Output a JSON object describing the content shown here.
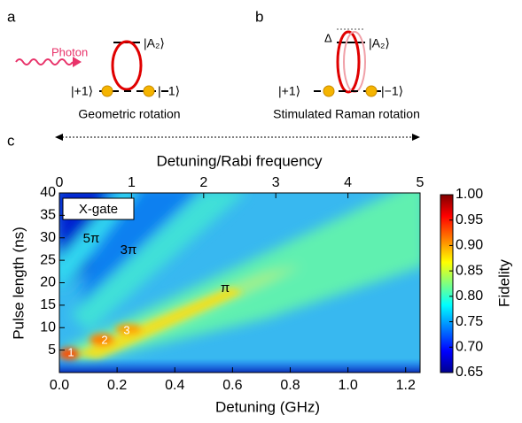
{
  "panels": {
    "a": {
      "label": "a",
      "photon": "Photon",
      "state_excited": "|A₂⟩",
      "state_plus": "|+1⟩",
      "state_minus": "|−1⟩",
      "caption": "Geometric rotation"
    },
    "b": {
      "label": "b",
      "delta": "Δ",
      "state_excited": "|A₂⟩",
      "state_plus": "|+1⟩",
      "state_minus": "|−1⟩",
      "caption": "Stimulated Raman rotation"
    }
  },
  "chart_data": {
    "type": "heatmap",
    "label": "c",
    "x_label": "Detuning (GHz)",
    "xlim": [
      0,
      1.25
    ],
    "xticks": [
      {
        "value": 0,
        "label": "0.0"
      },
      0.2,
      0.4,
      0.6,
      0.8,
      {
        "value": 1,
        "label": "1.0"
      },
      1.2
    ],
    "x2_label": "Detuning/Rabi frequency",
    "x2lim": [
      0,
      5
    ],
    "x2ticks": [
      0,
      1,
      2,
      3,
      4,
      5
    ],
    "y_label": "Pulse length (ns)",
    "ylim": [
      0,
      40
    ],
    "yticks": [
      5,
      10,
      15,
      20,
      25,
      30,
      35,
      40
    ],
    "colorbar_label": "Fidelity",
    "clim": [
      0.65,
      1.0
    ],
    "cticks": [
      0.65,
      {
        "value": 0.7,
        "label": "0.70"
      },
      0.75,
      {
        "value": 0.8,
        "label": "0.80"
      },
      0.85,
      {
        "value": 0.9,
        "label": "0.90"
      },
      0.95,
      {
        "value": 1,
        "label": "1.00"
      }
    ],
    "annotations": [
      "X-gate",
      "5π",
      "3π",
      "π",
      "1",
      "2",
      "3"
    ]
  }
}
